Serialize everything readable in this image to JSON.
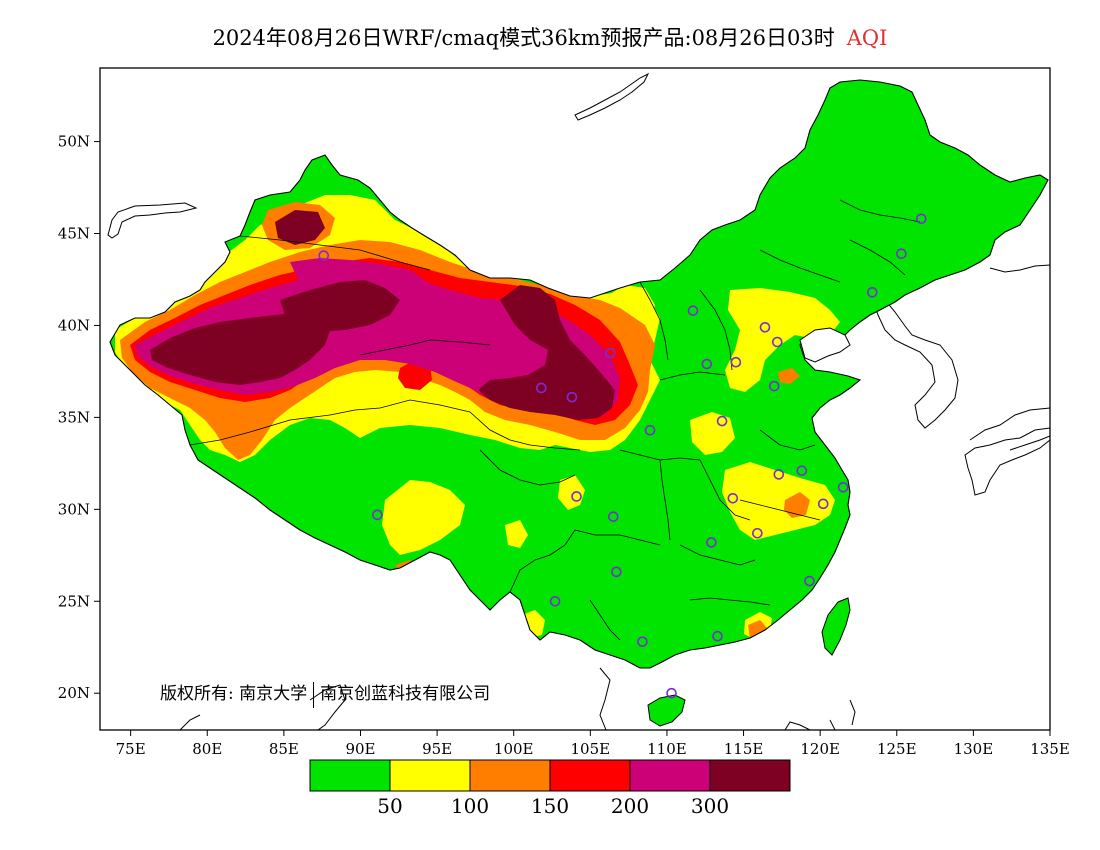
{
  "title": {
    "main": "2024年08月26日WRF/cmaq模式36km预报产品:08月26日03时",
    "variable": "AQI",
    "variable_color": "#e03030"
  },
  "map": {
    "lon_range": [
      73,
      135
    ],
    "lat_range": [
      18,
      54
    ],
    "x_ticks": [
      {
        "value": 75,
        "label": "75E"
      },
      {
        "value": 80,
        "label": "80E"
      },
      {
        "value": 85,
        "label": "85E"
      },
      {
        "value": 90,
        "label": "90E"
      },
      {
        "value": 95,
        "label": "95E"
      },
      {
        "value": 100,
        "label": "100E"
      },
      {
        "value": 105,
        "label": "105E"
      },
      {
        "value": 110,
        "label": "110E"
      },
      {
        "value": 115,
        "label": "115E"
      },
      {
        "value": 120,
        "label": "120E"
      },
      {
        "value": 125,
        "label": "125E"
      },
      {
        "value": 130,
        "label": "130E"
      },
      {
        "value": 135,
        "label": "135E"
      }
    ],
    "y_ticks": [
      {
        "value": 50,
        "label": "50N"
      },
      {
        "value": 45,
        "label": "45N"
      },
      {
        "value": 40,
        "label": "40N"
      },
      {
        "value": 35,
        "label": "35N"
      },
      {
        "value": 30,
        "label": "30N"
      },
      {
        "value": 25,
        "label": "25N"
      },
      {
        "value": 20,
        "label": "20N"
      }
    ],
    "colors": {
      "good": "#00e400",
      "moderate": "#ffff00",
      "usg": "#ff7e00",
      "unhealthy": "#ff0000",
      "very_unhealthy": "#cc0077",
      "hazardous": "#7e0023",
      "station": "#7b2bd6"
    },
    "stations": [
      [
        87.6,
        43.8
      ],
      [
        91.1,
        29.7
      ],
      [
        101.8,
        36.6
      ],
      [
        103.8,
        36.1
      ],
      [
        106.3,
        38.5
      ],
      [
        111.7,
        40.8
      ],
      [
        116.4,
        39.9
      ],
      [
        117.2,
        39.1
      ],
      [
        112.6,
        37.9
      ],
      [
        114.5,
        38.0
      ],
      [
        117.0,
        36.7
      ],
      [
        113.6,
        34.8
      ],
      [
        108.9,
        34.3
      ],
      [
        104.1,
        30.7
      ],
      [
        106.5,
        29.6
      ],
      [
        106.7,
        26.6
      ],
      [
        102.7,
        25.0
      ],
      [
        108.4,
        22.8
      ],
      [
        113.3,
        23.1
      ],
      [
        110.3,
        20.0
      ],
      [
        112.9,
        28.2
      ],
      [
        114.3,
        30.6
      ],
      [
        115.9,
        28.7
      ],
      [
        117.3,
        31.9
      ],
      [
        118.8,
        32.1
      ],
      [
        120.2,
        30.3
      ],
      [
        121.5,
        31.2
      ],
      [
        119.3,
        26.1
      ],
      [
        123.4,
        41.8
      ],
      [
        125.3,
        43.9
      ],
      [
        126.6,
        45.8
      ]
    ]
  },
  "legend": {
    "colors": [
      "#00e400",
      "#ffff00",
      "#ff7e00",
      "#ff0000",
      "#cc0077",
      "#7e0023"
    ],
    "labels": [
      "50",
      "100",
      "150",
      "200",
      "300"
    ]
  },
  "copyright": {
    "prefix": "版权所有:",
    "org1": "南京大学",
    "org2": "南京创蓝科技有限公司"
  }
}
